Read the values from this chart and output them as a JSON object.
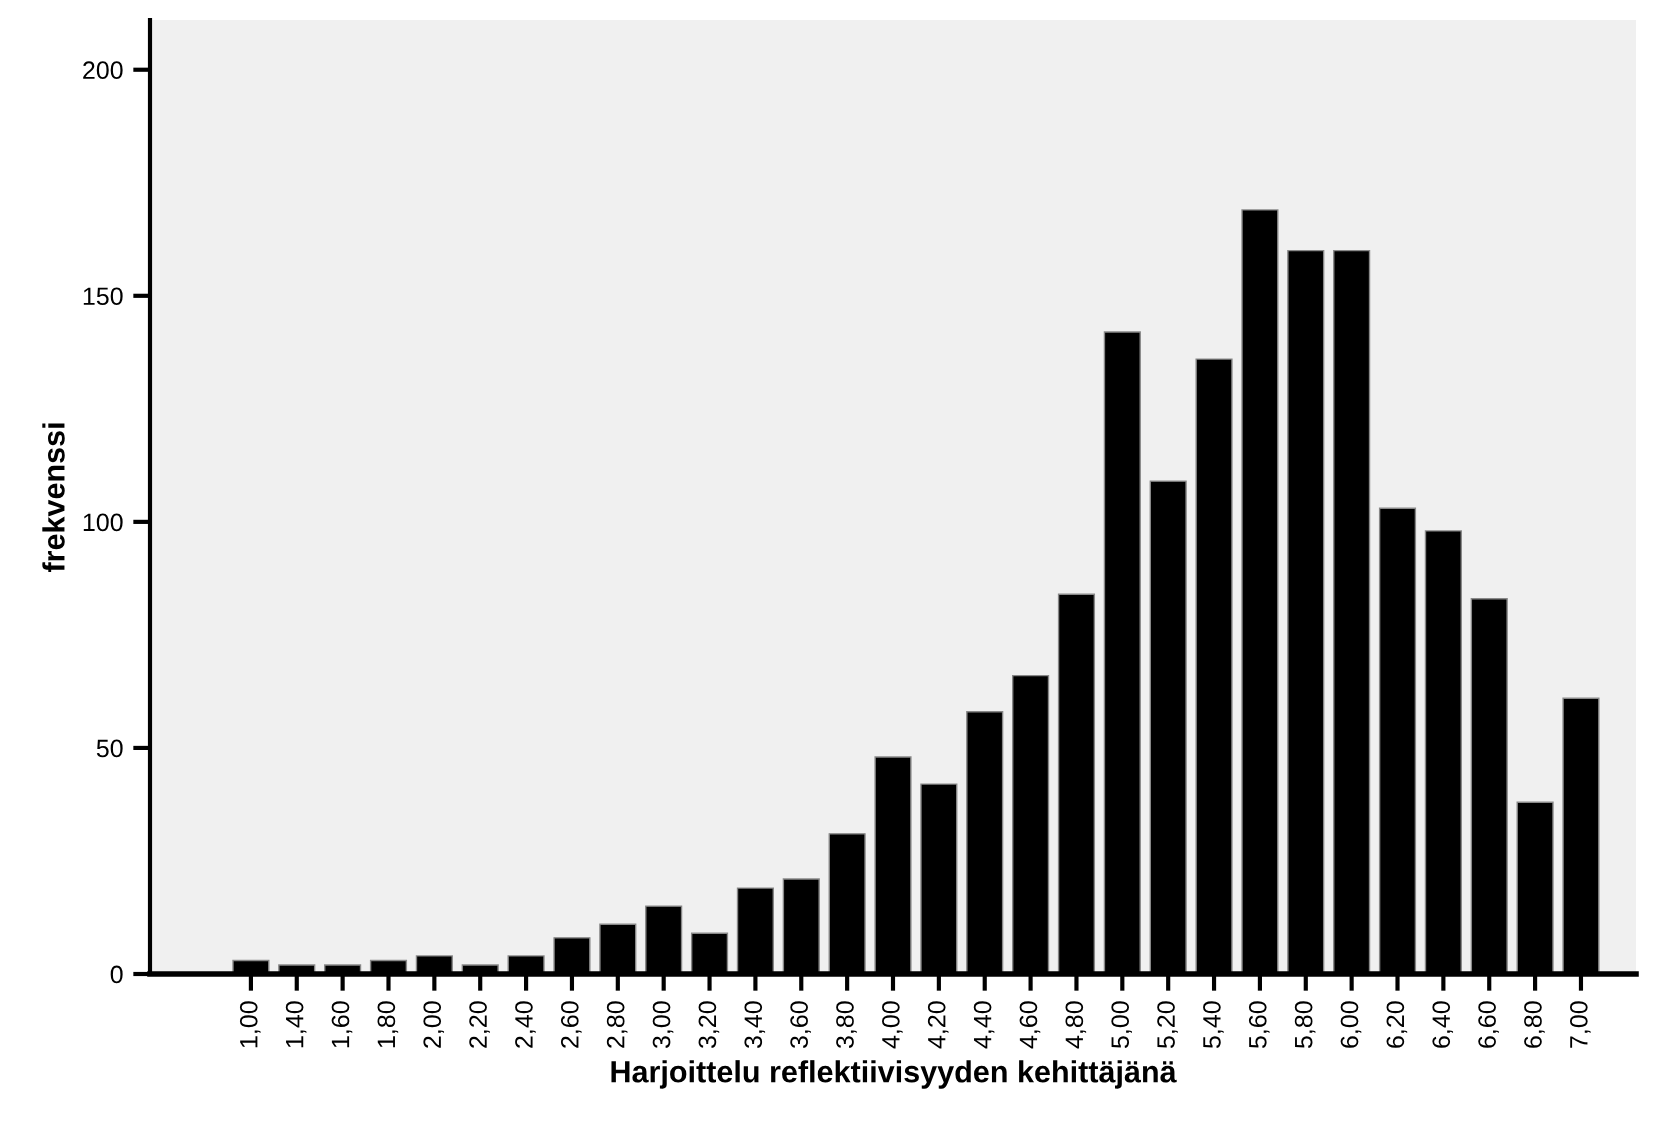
{
  "chart_data": {
    "type": "bar",
    "xlabel": "Harjoittelu reflektiivisyyden kehittäjänä",
    "ylabel": "frekvenssi",
    "categories": [
      "1,00",
      "1,40",
      "1,60",
      "1,80",
      "2,00",
      "2,20",
      "2,40",
      "2,60",
      "2,80",
      "3,00",
      "3,20",
      "3,40",
      "3,60",
      "3,80",
      "4,00",
      "4,20",
      "4,40",
      "4,60",
      "4,80",
      "5,00",
      "5,20",
      "5,40",
      "5,60",
      "5,80",
      "6,00",
      "6,20",
      "6,40",
      "6,60",
      "6,80",
      "7,00"
    ],
    "values": [
      3,
      2,
      2,
      3,
      4,
      2,
      4,
      8,
      11,
      15,
      9,
      19,
      21,
      31,
      48,
      42,
      58,
      66,
      84,
      142,
      109,
      136,
      169,
      160,
      160,
      103,
      98,
      83,
      38,
      61
    ],
    "color": "#000000",
    "ylim": [
      0,
      211
    ],
    "yticks": [
      0,
      50,
      100,
      150,
      200
    ],
    "grid": false
  }
}
